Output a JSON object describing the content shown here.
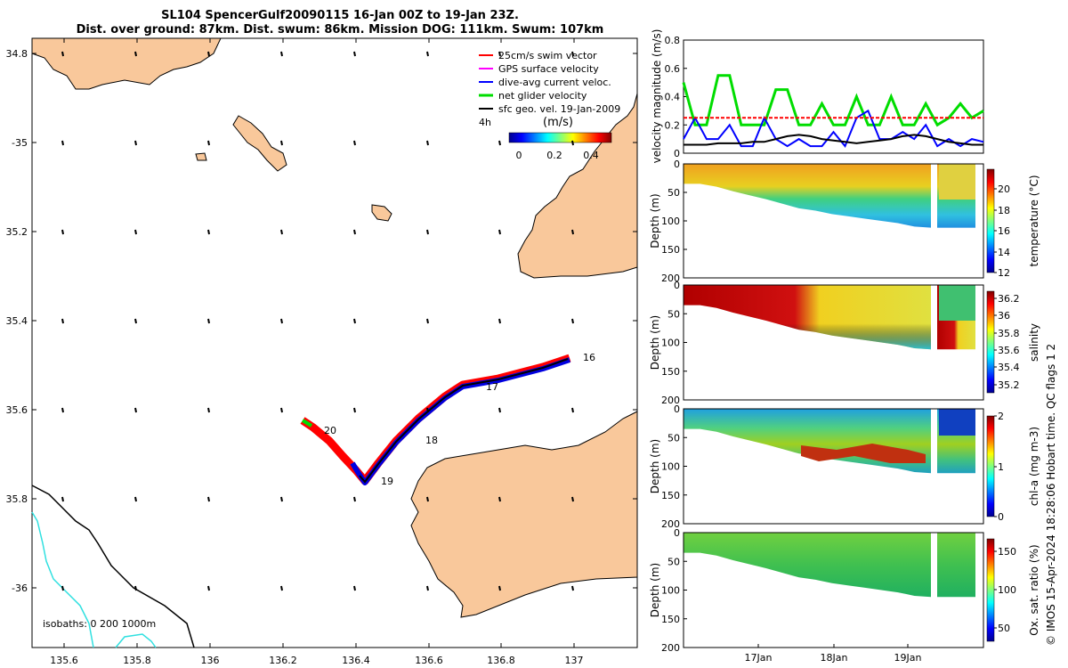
{
  "title_line1": "SL104 SpencerGulf20090115 16-Jan 00Z to 19-Jan 23Z.",
  "title_line2": "Dist. over ground: 87km. Dist. swum: 86km. Mission DOG: 111km. Swum: 107km",
  "map": {
    "lon_ticks": [
      "135.6",
      "135.8",
      "136",
      "136.2",
      "136.4",
      "136.6",
      "136.8",
      "137"
    ],
    "lat_ticks": [
      "34.8",
      "-35",
      "35.2",
      "35.4",
      "35.6",
      "35.8",
      "-36"
    ],
    "legend": [
      {
        "label": "25cm/s swim vector",
        "color": "#ff0000"
      },
      {
        "label": "GPS surface velocity",
        "color": "#ff00ff"
      },
      {
        "label": "dive-avg current veloc.",
        "color": "#0000ff"
      },
      {
        "label": "net glider velocity",
        "color": "#00dd00"
      },
      {
        "label": "sfc geo. vel. 19-Jan-2009",
        "color": "#000000"
      }
    ],
    "legend_extra": "4h",
    "colorbar_unit": "(m/s)",
    "colorbar_ticks": [
      "0",
      "0.2",
      "0.4"
    ],
    "day_labels": [
      "16",
      "17",
      "18",
      "19",
      "20"
    ],
    "isobaths_label": "isobaths: 0   200  1000m"
  },
  "chart_data": [
    {
      "type": "line",
      "ylabel": "velocity magnitude (m/s)",
      "ylim": [
        0,
        0.8
      ],
      "y_ticks": [
        "0",
        "0.2",
        "0.4",
        "0.6",
        "0.8"
      ],
      "series": [
        {
          "color": "#00dd00",
          "values": [
            0.5,
            0.2,
            0.2,
            0.55,
            0.55,
            0.2,
            0.2,
            0.2,
            0.45,
            0.45,
            0.2,
            0.2,
            0.35,
            0.2,
            0.2,
            0.4,
            0.2,
            0.2,
            0.4,
            0.2,
            0.2,
            0.35,
            0.2,
            0.25,
            0.35,
            0.25,
            0.3
          ]
        },
        {
          "color": "#0000ff",
          "values": [
            0.1,
            0.25,
            0.1,
            0.1,
            0.2,
            0.05,
            0.05,
            0.25,
            0.1,
            0.05,
            0.1,
            0.05,
            0.05,
            0.15,
            0.05,
            0.25,
            0.3,
            0.1,
            0.1,
            0.15,
            0.1,
            0.2,
            0.05,
            0.1,
            0.05,
            0.1,
            0.08
          ]
        },
        {
          "color": "#000000",
          "values": [
            0.06,
            0.06,
            0.06,
            0.07,
            0.07,
            0.07,
            0.08,
            0.08,
            0.1,
            0.12,
            0.13,
            0.12,
            0.1,
            0.09,
            0.08,
            0.07,
            0.08,
            0.09,
            0.1,
            0.12,
            0.13,
            0.12,
            0.1,
            0.08,
            0.07,
            0.06,
            0.06
          ]
        },
        {
          "color": "#ff0000",
          "values": [
            0.25,
            0.25,
            0.25,
            0.25,
            0.25,
            0.25,
            0.25,
            0.25,
            0.25,
            0.25,
            0.25,
            0.25,
            0.25,
            0.25,
            0.25,
            0.25,
            0.25,
            0.25,
            0.25,
            0.25,
            0.25,
            0.25,
            0.25,
            0.25,
            0.25,
            0.25,
            0.25
          ]
        }
      ]
    },
    {
      "type": "heatmap",
      "ylabel": "Depth (m)",
      "y_ticks": [
        "0",
        "50",
        "100",
        "150",
        "200"
      ],
      "colorbar_label": "temperature (°C)",
      "colorbar_ticks": [
        "12",
        "14",
        "16",
        "18",
        "20"
      ],
      "profile_bottom_m": [
        35,
        35,
        40,
        48,
        55,
        62,
        70,
        78,
        82,
        88,
        92,
        96,
        100,
        104,
        110,
        112
      ]
    },
    {
      "type": "heatmap",
      "ylabel": "Depth (m)",
      "y_ticks": [
        "0",
        "50",
        "100",
        "150",
        "200"
      ],
      "colorbar_label": "salinity",
      "colorbar_ticks": [
        "35.2",
        "35.4",
        "35.6",
        "35.8",
        "36",
        "36.2"
      ],
      "profile_bottom_m": [
        35,
        35,
        40,
        48,
        55,
        62,
        70,
        78,
        82,
        88,
        92,
        96,
        100,
        104,
        110,
        112
      ]
    },
    {
      "type": "heatmap",
      "ylabel": "Depth (m)",
      "y_ticks": [
        "0",
        "50",
        "100",
        "150",
        "200"
      ],
      "colorbar_label": "chl-a (mg m-3)",
      "colorbar_ticks": [
        "0",
        "1",
        "2"
      ],
      "profile_bottom_m": [
        35,
        35,
        40,
        48,
        55,
        62,
        70,
        78,
        82,
        88,
        92,
        96,
        100,
        104,
        110,
        112
      ]
    },
    {
      "type": "heatmap",
      "ylabel": "Depth (m)",
      "y_ticks": [
        "0",
        "50",
        "100",
        "150",
        "200"
      ],
      "colorbar_label": "Ox. sat. ratio (%)",
      "colorbar_ticks": [
        "50",
        "100",
        "150"
      ],
      "x_ticks": [
        "17Jan",
        "18Jan",
        "19Jan"
      ],
      "profile_bottom_m": [
        35,
        35,
        40,
        48,
        55,
        62,
        70,
        78,
        82,
        88,
        92,
        96,
        100,
        104,
        110,
        112
      ]
    }
  ],
  "side_note": "© IMOS 15-Apr-2024 18:28:06 Hobart time. QC flags 1  2"
}
